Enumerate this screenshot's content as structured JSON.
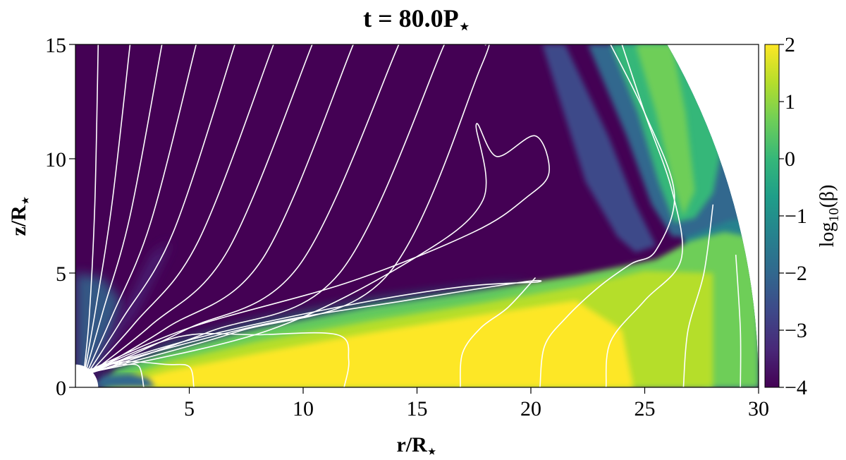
{
  "chart_data": {
    "type": "heatmap",
    "title": "t = 80.0P⋆",
    "title_main": "t = 80.0P",
    "title_sub": "⋆",
    "xlabel_main": "r/R",
    "xlabel_sub": "⋆",
    "ylabel_main": "z/R",
    "ylabel_sub": "⋆",
    "xlim": [
      0,
      30
    ],
    "ylim": [
      0,
      15
    ],
    "xticks": [
      "5",
      "10",
      "15",
      "20",
      "25",
      "30"
    ],
    "xtick_values": [
      5,
      10,
      15,
      20,
      25,
      30
    ],
    "yticks": [
      "0",
      "5",
      "10",
      "15"
    ],
    "ytick_values": [
      0,
      5,
      10,
      15
    ],
    "colorbar": {
      "label_main": "log",
      "label_sub": "10",
      "label_tail": "(β)",
      "range": [
        -4,
        2
      ],
      "ticks": [
        "−4",
        "−3",
        "−2",
        "−1",
        "0",
        "1",
        "2"
      ],
      "tick_values": [
        -4,
        -3,
        -2,
        -1,
        0,
        1,
        2
      ],
      "colormap": "viridis"
    },
    "domain_outer_radius": 30,
    "stellar_radius": 1,
    "colors": {
      "viridis": [
        "#440154",
        "#482878",
        "#3e4989",
        "#31688e",
        "#26828e",
        "#1f9e89",
        "#35b779",
        "#6ece58",
        "#b5de2b",
        "#fde725"
      ],
      "field_lines": "#ffffff"
    },
    "field_lines": [
      {
        "points": [
          [
            0.3,
            0.05
          ],
          [
            0.6,
            3
          ],
          [
            0.85,
            8
          ],
          [
            1.0,
            15
          ]
        ]
      },
      {
        "points": [
          [
            0.3,
            0.1
          ],
          [
            0.9,
            3.5
          ],
          [
            1.6,
            8
          ],
          [
            2.4,
            15
          ]
        ]
      },
      {
        "points": [
          [
            0.3,
            0.15
          ],
          [
            1.2,
            3.3
          ],
          [
            2.4,
            7.5
          ],
          [
            3.8,
            15
          ]
        ]
      },
      {
        "points": [
          [
            0.3,
            0.2
          ],
          [
            1.6,
            3.1
          ],
          [
            3.3,
            7.2
          ],
          [
            5.3,
            15
          ]
        ]
      },
      {
        "points": [
          [
            0.3,
            0.25
          ],
          [
            2.0,
            2.9
          ],
          [
            4.3,
            6.8
          ],
          [
            7.0,
            15
          ]
        ]
      },
      {
        "points": [
          [
            0.3,
            0.3
          ],
          [
            2.6,
            2.8
          ],
          [
            5.4,
            6.4
          ],
          [
            8.7,
            15
          ]
        ]
      },
      {
        "points": [
          [
            0.3,
            0.35
          ],
          [
            3.3,
            2.7
          ],
          [
            6.7,
            6.0
          ],
          [
            10.4,
            15
          ]
        ]
      },
      {
        "points": [
          [
            0.3,
            0.4
          ],
          [
            4.0,
            2.6
          ],
          [
            8.2,
            5.6
          ],
          [
            12.2,
            15
          ]
        ]
      },
      {
        "points": [
          [
            0.3,
            0.45
          ],
          [
            4.8,
            2.5
          ],
          [
            9.8,
            5.3
          ],
          [
            14.2,
            15
          ]
        ]
      },
      {
        "points": [
          [
            0.3,
            0.5
          ],
          [
            5.8,
            2.4
          ],
          [
            11.6,
            5.0
          ],
          [
            16.2,
            15
          ]
        ]
      },
      {
        "points": [
          [
            0.3,
            0.55
          ],
          [
            7.0,
            2.4
          ],
          [
            13.6,
            4.8
          ],
          [
            17.8,
            14.0
          ],
          [
            18.0,
            15
          ]
        ]
      },
      {
        "points": [
          [
            0.4,
            0.6
          ],
          [
            8.5,
            2.5
          ],
          [
            14.8,
            5.6
          ],
          [
            17.9,
            8.2
          ],
          [
            17.6,
            11.5
          ],
          [
            18.5,
            10.1
          ],
          [
            20.2,
            11.0
          ],
          [
            20.8,
            9.4
          ],
          [
            19.8,
            8.3
          ],
          [
            17.5,
            6.8
          ],
          [
            12.0,
            4.6
          ],
          [
            5.0,
            2.6
          ],
          [
            0.4,
            0.65
          ]
        ]
      },
      {
        "points": [
          [
            0.4,
            0.7
          ],
          [
            5.5,
            2.2
          ],
          [
            12.0,
            3.6
          ],
          [
            17.0,
            4.4
          ],
          [
            20.2,
            4.6
          ],
          [
            19.6,
            4.6
          ],
          [
            14.5,
            3.8
          ],
          [
            8.0,
            2.7
          ],
          [
            0.4,
            0.72
          ]
        ]
      },
      {
        "points": [
          [
            0.4,
            0.5
          ],
          [
            1.2,
            1.0
          ],
          [
            2.2,
            1.0
          ],
          [
            2.8,
            0.9
          ],
          [
            3.0,
            0.0
          ]
        ]
      },
      {
        "points": [
          [
            0.4,
            0.55
          ],
          [
            2.0,
            1.1
          ],
          [
            4.0,
            1.0
          ],
          [
            5.0,
            0.9
          ],
          [
            5.2,
            0.0
          ]
        ]
      },
      {
        "points": [
          [
            0.4,
            0.6
          ],
          [
            4.5,
            2.2
          ],
          [
            8.0,
            2.3
          ],
          [
            11.5,
            2.3
          ],
          [
            12.0,
            1.2
          ],
          [
            11.8,
            0.0
          ]
        ]
      },
      {
        "points": [
          [
            16.9,
            0.0
          ],
          [
            17.0,
            1.5
          ],
          [
            17.8,
            2.6
          ],
          [
            19.0,
            3.5
          ],
          [
            20.2,
            4.8
          ]
        ]
      },
      {
        "points": [
          [
            20.4,
            0.0
          ],
          [
            20.6,
            1.8
          ],
          [
            21.5,
            3.0
          ],
          [
            23.0,
            4.4
          ],
          [
            24.4,
            5.4
          ],
          [
            25.5,
            6.0
          ],
          [
            26.3,
            8.5
          ],
          [
            25.0,
            12.0
          ],
          [
            23.5,
            15
          ]
        ]
      },
      {
        "points": [
          [
            23.3,
            0.0
          ],
          [
            23.5,
            2.0
          ],
          [
            25.0,
            3.8
          ],
          [
            26.6,
            5.6
          ],
          [
            26.2,
            8.6
          ],
          [
            25.0,
            12.0
          ],
          [
            24.0,
            15
          ]
        ]
      },
      {
        "points": [
          [
            26.7,
            0.0
          ],
          [
            26.9,
            2.5
          ],
          [
            27.6,
            5.0
          ],
          [
            28.0,
            8.0
          ]
        ]
      },
      {
        "points": [
          [
            29.2,
            0.0
          ],
          [
            29.2,
            2.5
          ],
          [
            29.0,
            5.8
          ]
        ]
      }
    ]
  }
}
